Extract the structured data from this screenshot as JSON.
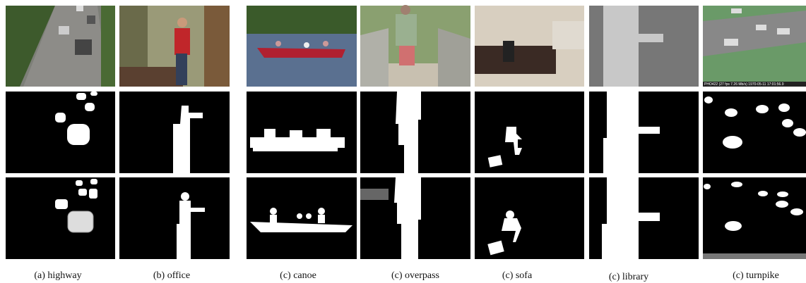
{
  "figure": {
    "captions": [
      "(a) highway",
      "(b) office",
      "(c) canoe",
      "(c) overpass",
      "(c) sofa",
      "(c) library",
      "(c) turnpike"
    ],
    "overlay_text": "PHO422 (27 fps  7.26 Mb/s) 1970-05-11 17:01:56.9"
  }
}
